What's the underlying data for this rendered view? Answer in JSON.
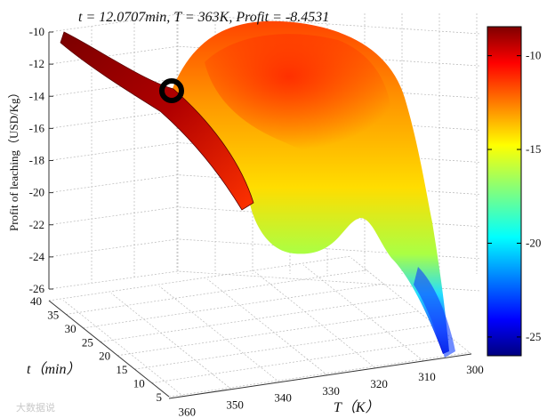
{
  "chart_data": {
    "type": "surface",
    "title": "t = 12.0707min,  T = 363K,  Profit = -8.4531",
    "optimum": {
      "t_min": 12.0707,
      "T_K": 363,
      "profit": -8.4531
    },
    "zlabel": "Profit of leaching（USD/Kg）",
    "xlabel": "T（K）",
    "ylabel": "t（min）",
    "z_ticks": [
      -10,
      -12,
      -14,
      -16,
      -18,
      -20,
      -22,
      -24,
      -26
    ],
    "zlim": [
      -26,
      -10
    ],
    "T_ticks": [
      360,
      350,
      340,
      330,
      320,
      310,
      300
    ],
    "Tlim": [
      300,
      363
    ],
    "t_ticks": [
      40,
      35,
      30,
      25,
      20,
      15,
      10,
      5
    ],
    "tlim": [
      5,
      40
    ],
    "colorbar": {
      "ticks": [
        -10,
        -15,
        -20,
        -25
      ],
      "range": [
        -26,
        -8.4531
      ],
      "colormap": "jet"
    },
    "grid": true,
    "watermark": "大数据说"
  }
}
